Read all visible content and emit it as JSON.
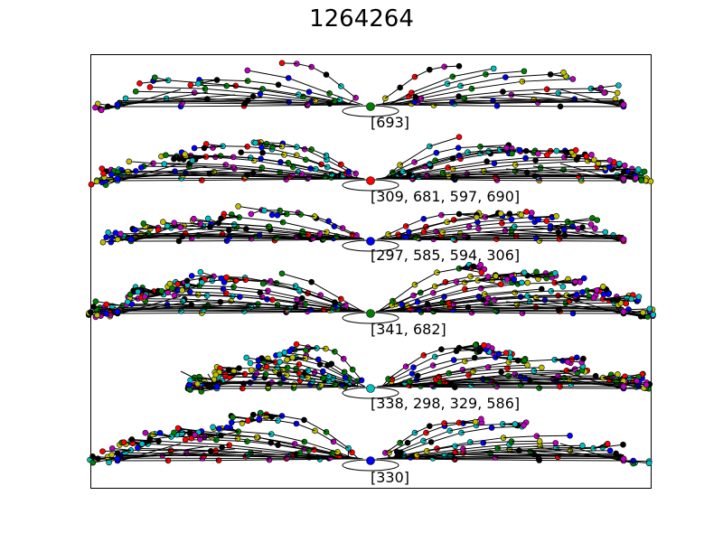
{
  "title": "1264264",
  "node_colors": [
    "#000000",
    "#ff0000",
    "#0000ff",
    "#008000",
    "#00bfbf",
    "#bf00bf",
    "#bfbf00"
  ],
  "rows": [
    {
      "label": "[693]",
      "root_color": "#008000"
    },
    {
      "label": "[309, 681, 597, 690]",
      "root_color": "#ff0000"
    },
    {
      "label": "[297, 585, 594, 306]",
      "root_color": "#0000ff"
    },
    {
      "label": "[341, 682]",
      "root_color": "#008000"
    },
    {
      "label": "[338, 298, 329, 586]",
      "root_color": "#00bfbf"
    },
    {
      "label": "[330]",
      "root_color": "#0000ff"
    }
  ]
}
